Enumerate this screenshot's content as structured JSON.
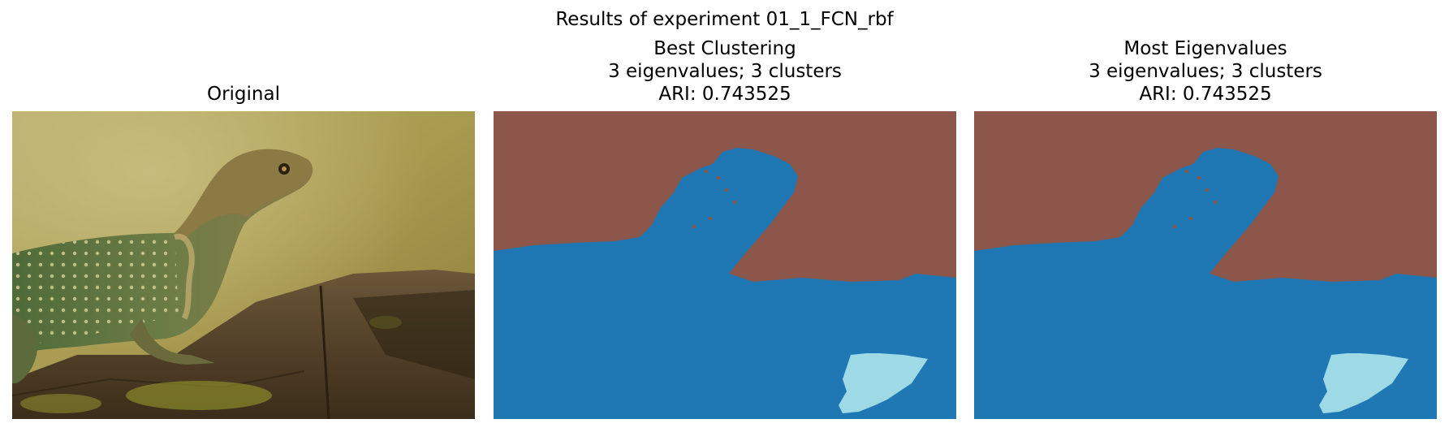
{
  "figure": {
    "title": "Results of experiment 01_1_FCN_rbf"
  },
  "panels": [
    {
      "title_lines": [
        "Original"
      ],
      "image": "photo-of-collared-lizard-on-rock"
    },
    {
      "title_lines": [
        "Best Clustering",
        "3 eigenvalues; 3 clusters",
        "ARI: 0.743525"
      ],
      "image": "segmentation-map"
    },
    {
      "title_lines": [
        "Most Eigenvalues",
        "3 eigenvalues; 3 clusters",
        "ARI: 0.743525"
      ],
      "image": "segmentation-map"
    }
  ],
  "cluster_colors": {
    "background": "#8c564b",
    "foreground": "#1f77b4",
    "highlight": "#9edae5"
  }
}
